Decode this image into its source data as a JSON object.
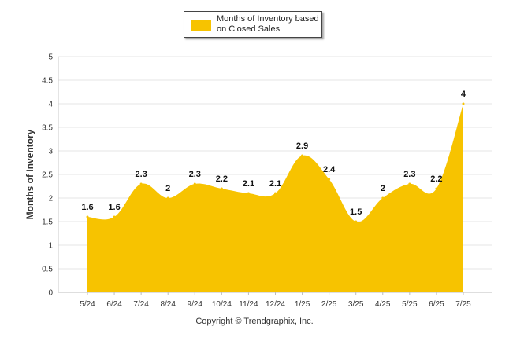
{
  "legend": {
    "label": "Months of Inventory based on Closed Sales"
  },
  "footer": {
    "copyright": "Copyright © Trendgraphix, Inc."
  },
  "colors": {
    "area": "#f7c300",
    "grid": "#e6e6e6",
    "axis_text": "#333333"
  },
  "chart_data": {
    "type": "area",
    "ylabel": "Months of Inventory",
    "xlabel": "",
    "ylim": [
      0,
      5
    ],
    "yticks": [
      "0",
      "0.5",
      "1",
      "1.5",
      "2",
      "2.5",
      "3",
      "3.5",
      "4",
      "4.5",
      "5"
    ],
    "categories": [
      "5/24",
      "6/24",
      "7/24",
      "8/24",
      "9/24",
      "10/24",
      "11/24",
      "12/24",
      "1/25",
      "2/25",
      "3/25",
      "4/25",
      "5/25",
      "6/25",
      "7/25"
    ],
    "series": [
      {
        "name": "Months of Inventory based on Closed Sales",
        "values": [
          1.6,
          1.6,
          2.3,
          2.0,
          2.3,
          2.2,
          2.1,
          2.1,
          2.9,
          2.4,
          1.5,
          2.0,
          2.3,
          2.2,
          4.0
        ],
        "labels": [
          "1.6",
          "1.6",
          "2.3",
          "2",
          "2.3",
          "2.2",
          "2.1",
          "2.1",
          "2.9",
          "2.4",
          "1.5",
          "2",
          "2.3",
          "2.2",
          "4"
        ]
      }
    ],
    "grid": true,
    "legend_position": "top-center"
  }
}
